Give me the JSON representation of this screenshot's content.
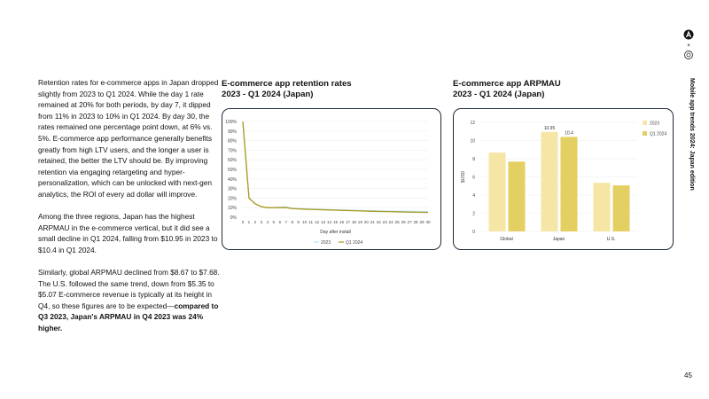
{
  "body": {
    "p1": "Retention rates for e-commerce apps in Japan dropped slightly from 2023 to Q1 2024. While the day 1 rate remained at 20% for both periods, by day 7, it dipped from 11% in 2023 to 10% in Q1 2024. By day 30, the rates remained one percentage point down, at 6% vs. 5%. E-commerce app performance generally benefits greatly from high LTV users, and the longer a user is retained, the better the LTV should be. By improving retention via engaging retargeting and hyper-personalization, which can be unlocked with next-gen analytics, the ROI of every ad dollar will improve.",
    "p2": "Among the three regions, Japan has the highest ARPMAU in the e-commerce vertical, but it did see a small decline in Q1 2024, falling from $10.95 in 2023 to $10.4 in Q1 2024.",
    "p3": "Similarly, global ARPMAU declined from $8.67 to $7.68. The U.S. followed the same trend, down from $5.35 to $5.07 E-commerce revenue is typically at its height in Q4, so these figures are to be expected—",
    "p3_bold": "compared to Q3 2023, Japan's ARPMAU in Q4 2023 was 24% higher."
  },
  "side_title": "Mobile app trends 2024: Japan edition",
  "logo_separator": "×",
  "page_number": "45",
  "chart_data": [
    {
      "type": "line",
      "title": "E-commerce app retention rates",
      "subtitle": "2023 - Q1 2024 (Japan)",
      "xlabel": "Day after install",
      "ylabel": "",
      "x": [
        0,
        1,
        2,
        3,
        4,
        5,
        6,
        7,
        8,
        9,
        10,
        11,
        12,
        13,
        14,
        15,
        16,
        17,
        18,
        19,
        20,
        21,
        22,
        23,
        24,
        25,
        26,
        27,
        28,
        29,
        30
      ],
      "yticks": [
        "0%",
        "10%",
        "20%",
        "30%",
        "40%",
        "50%",
        "60%",
        "70%",
        "80%",
        "90%",
        "100%"
      ],
      "ylim": [
        0,
        100
      ],
      "series": [
        {
          "name": "2023",
          "color": "#bfe3f2",
          "values": [
            100,
            20,
            14,
            11,
            10,
            10,
            10.5,
            11,
            9.5,
            9,
            8.8,
            8.6,
            8.4,
            8.2,
            8,
            7.8,
            7.6,
            7.4,
            7.2,
            7,
            6.9,
            6.8,
            6.7,
            6.6,
            6.5,
            6.4,
            6.3,
            6.2,
            6.1,
            6.05,
            6
          ]
        },
        {
          "name": "Q1 2024",
          "color": "#a89a1e",
          "values": [
            100,
            20,
            14,
            11,
            10,
            10,
            10,
            10,
            9,
            8.7,
            8.4,
            8.2,
            8,
            7.8,
            7.6,
            7.4,
            7.2,
            7,
            6.8,
            6.6,
            6.4,
            6.2,
            6,
            5.9,
            5.8,
            5.6,
            5.5,
            5.3,
            5.2,
            5.1,
            5
          ]
        }
      ],
      "legend": "bottom"
    },
    {
      "type": "bar",
      "title": "E-commerce app ARPMAU",
      "subtitle": "2023 - Q1 2024 (Japan)",
      "ylabel": "$USD",
      "categories": [
        "Global",
        "Japan",
        "U.S."
      ],
      "ylim": [
        0,
        12
      ],
      "yticks": [
        "0",
        "2",
        "4",
        "6",
        "8",
        "10",
        "12"
      ],
      "series": [
        {
          "name": "2023",
          "color": "#f5e6a6",
          "values": [
            8.67,
            10.95,
            5.35
          ],
          "labels": [
            "",
            "10.95",
            ""
          ]
        },
        {
          "name": "Q1 2024",
          "color": "#e3cf62",
          "values": [
            7.68,
            10.4,
            5.07
          ],
          "labels": [
            "",
            "10.4",
            ""
          ]
        }
      ],
      "legend": "right"
    }
  ]
}
